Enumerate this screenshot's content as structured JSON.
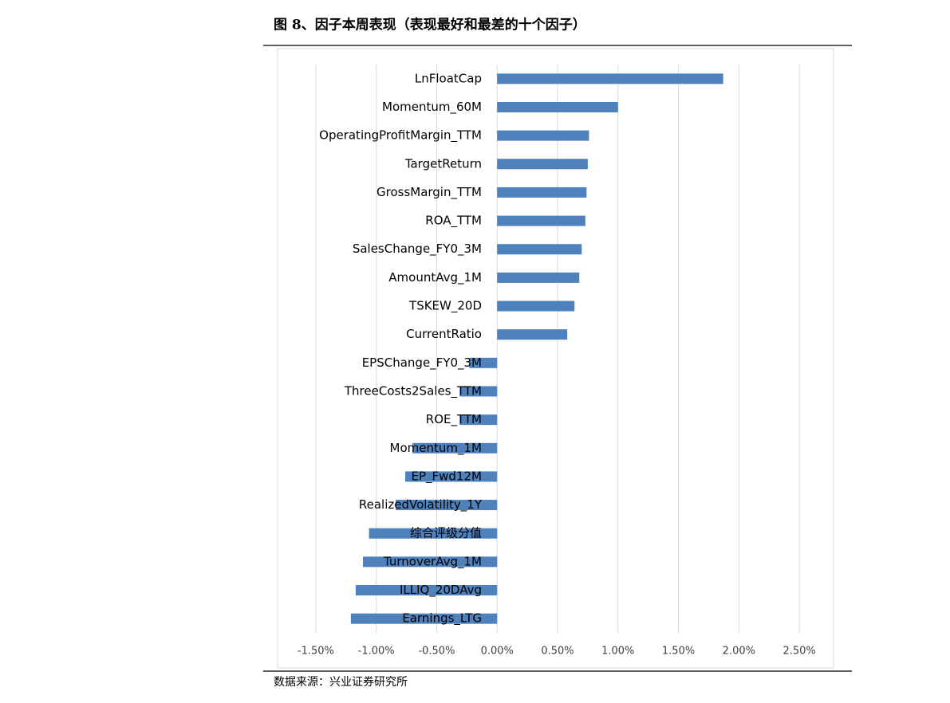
{
  "chart_data": {
    "type": "hbar",
    "title": "图 8、因子本周表现（表现最好和最差的十个因子）",
    "source": "数据来源：兴业证券研究所",
    "categories": [
      "LnFloatCap",
      "Momentum_60M",
      "OperatingProfitMargin_TTM",
      "TargetReturn",
      "GrossMargin_TTM",
      "ROA_TTM",
      "SalesChange_FY0_3M",
      "AmountAvg_1M",
      "TSKEW_20D",
      "CurrentRatio",
      "EPSChange_FY0_3M",
      "ThreeCosts2Sales_TTM",
      "ROE_TTM",
      "Momentum_1M",
      "EP_Fwd12M",
      "RealizedVolatility_1Y",
      "综合评级分值",
      "TurnoverAvg_1M",
      "ILLIQ_20DAvg",
      "Earnings_LTG"
    ],
    "values": [
      1.87,
      1.0,
      0.76,
      0.75,
      0.74,
      0.73,
      0.7,
      0.68,
      0.64,
      0.58,
      -0.23,
      -0.31,
      -0.31,
      -0.7,
      -0.76,
      -0.84,
      -1.06,
      -1.11,
      -1.17,
      -1.21
    ],
    "color": "#4f81bd",
    "xlim": [
      -1.75,
      2.75
    ],
    "xticks": [
      {
        "value": -1.5,
        "label": "-1.50%"
      },
      {
        "value": -1.0,
        "label": "-1.00%"
      },
      {
        "value": -0.5,
        "label": "-0.50%"
      },
      {
        "value": 0,
        "label": "0.00%"
      },
      {
        "value": 0.5,
        "label": "0.50%"
      },
      {
        "value": 1.0,
        "label": "1.00%"
      },
      {
        "value": 1.5,
        "label": "1.50%"
      },
      {
        "value": 2.0,
        "label": "2.00%"
      },
      {
        "value": 2.5,
        "label": "2.50%"
      }
    ],
    "grid": true
  }
}
